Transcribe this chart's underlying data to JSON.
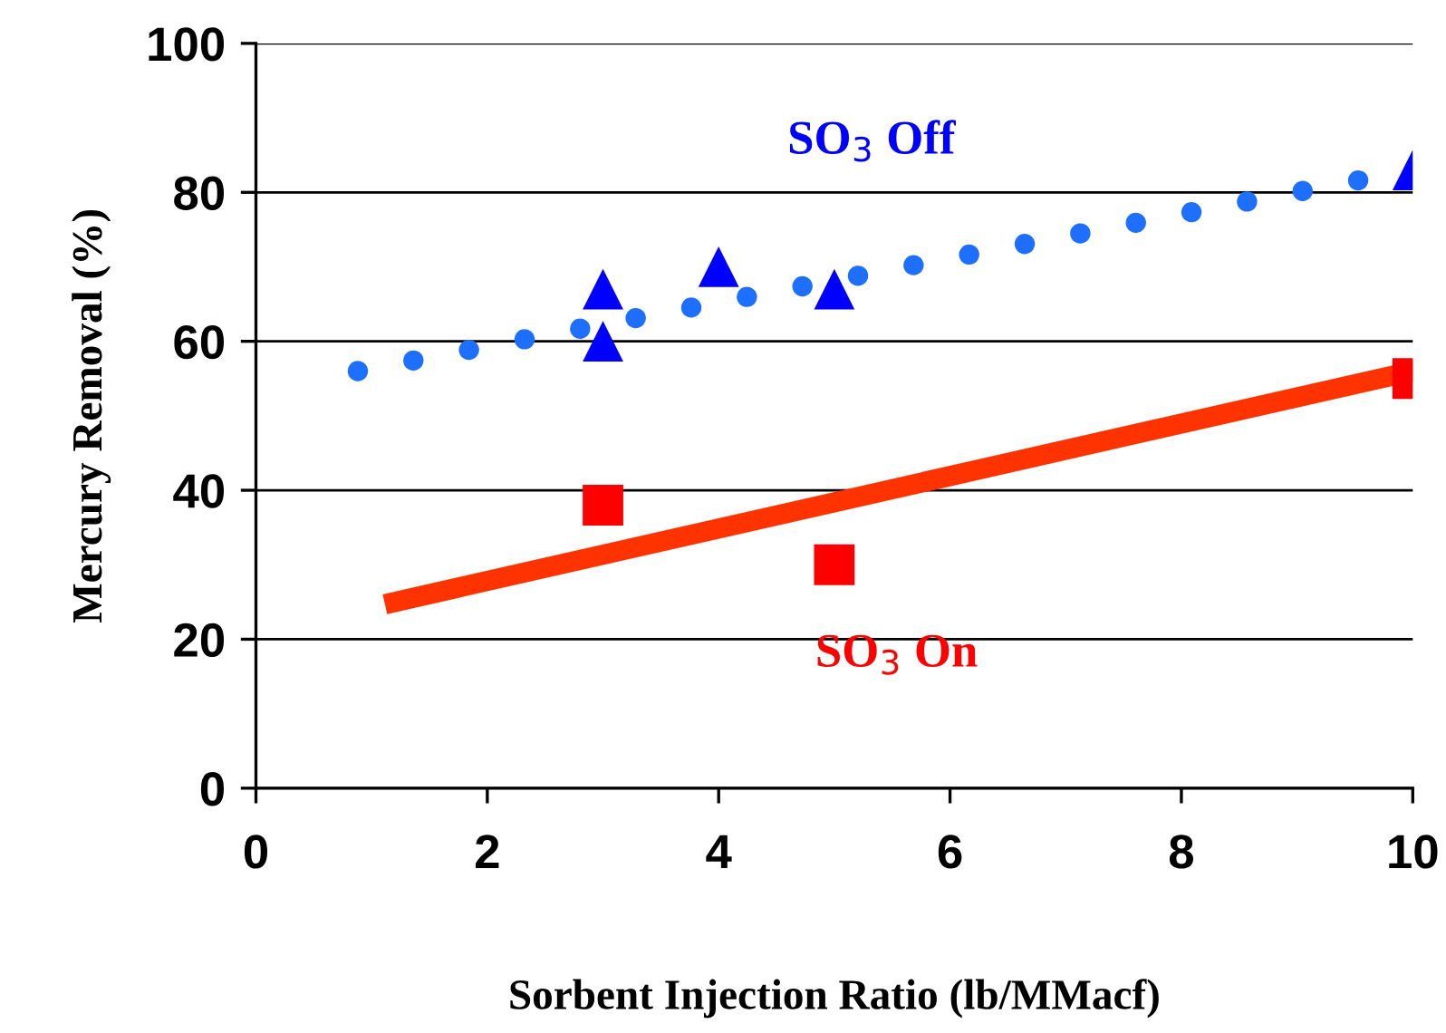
{
  "chart_data": {
    "type": "scatter",
    "xlabel": "Sorbent Injection Ratio (lb/MMacf)",
    "ylabel": "Mercury Removal (%)",
    "xlim": [
      0,
      10
    ],
    "xticks": [
      0,
      2,
      4,
      6,
      8,
      10
    ],
    "ylim": [
      0,
      100
    ],
    "yticks": [
      0,
      20,
      40,
      60,
      80,
      100
    ],
    "grid": "y",
    "series": [
      {
        "type": "line",
        "color": "#1f6fff",
        "line_style": "dotted",
        "x": [
          0.88,
          10
        ],
        "values": [
          56,
          83
        ]
      },
      {
        "type": "line",
        "color": "#ff3300",
        "line_style": "solid",
        "x": [
          1.2,
          10
        ],
        "values": [
          25,
          56
        ]
      },
      {
        "name": "SO$_{3}$ Off",
        "color": "#0000ff",
        "marker": "triangle",
        "x": [
          3,
          3,
          4,
          5,
          10
        ],
        "values": [
          67,
          60,
          70,
          67,
          83
        ]
      },
      {
        "name": "SO$_{3}$ On",
        "color": "#ff0000",
        "marker": "square",
        "x": [
          3,
          5,
          10
        ],
        "values": [
          38,
          30,
          55
        ]
      }
    ]
  }
}
